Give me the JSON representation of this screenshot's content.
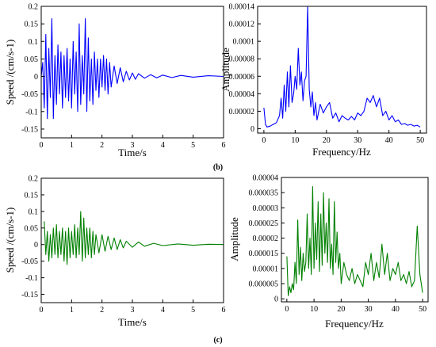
{
  "captions": {
    "b": "(b)",
    "c": "(c)"
  },
  "chart_data": [
    {
      "id": "b-time",
      "type": "line",
      "color": "#0000ff",
      "xlabel": "Time/s",
      "ylabel": "Speed /(cm/s-1)",
      "xlim": [
        0,
        6
      ],
      "ylim": [
        -0.175,
        0.2
      ],
      "xticks": [
        "0",
        "1",
        "2",
        "3",
        "4",
        "5",
        "6"
      ],
      "yticks": [
        "-0.15",
        "-0.1",
        "-0.05",
        "0",
        "0.05",
        "0.1",
        "0.15",
        "0.2"
      ],
      "x": [
        0,
        0.05,
        0.1,
        0.15,
        0.2,
        0.25,
        0.3,
        0.35,
        0.4,
        0.45,
        0.5,
        0.55,
        0.6,
        0.65,
        0.7,
        0.75,
        0.8,
        0.85,
        0.9,
        0.95,
        1.0,
        1.05,
        1.1,
        1.15,
        1.2,
        1.25,
        1.3,
        1.35,
        1.4,
        1.45,
        1.5,
        1.55,
        1.6,
        1.65,
        1.7,
        1.75,
        1.8,
        1.85,
        1.9,
        1.95,
        2.0,
        2.05,
        2.1,
        2.15,
        2.2,
        2.25,
        2.3,
        2.4,
        2.5,
        2.6,
        2.7,
        2.8,
        2.9,
        3.0,
        3.1,
        3.2,
        3.4,
        3.6,
        3.8,
        4.0,
        4.3,
        4.6,
        5.0,
        5.5,
        6.0
      ],
      "y": [
        0,
        0.04,
        -0.09,
        0.12,
        -0.12,
        0.08,
        -0.06,
        0.165,
        -0.12,
        0.06,
        -0.08,
        0.09,
        -0.05,
        0.07,
        -0.09,
        0.06,
        -0.06,
        0.08,
        -0.07,
        0.05,
        -0.09,
        0.1,
        -0.05,
        0.07,
        -0.1,
        0.15,
        -0.08,
        0.06,
        -0.05,
        0.165,
        -0.1,
        0.11,
        -0.07,
        0.05,
        -0.08,
        0.07,
        -0.04,
        0.05,
        -0.06,
        0.05,
        -0.03,
        0.06,
        -0.04,
        0.05,
        -0.05,
        0.04,
        -0.03,
        0.03,
        -0.02,
        0.025,
        -0.015,
        0.015,
        -0.01,
        0.01,
        -0.008,
        0.008,
        -0.005,
        0.005,
        -0.004,
        0.004,
        -0.003,
        0.003,
        -0.002,
        0.002,
        0
      ]
    },
    {
      "id": "b-spectrum",
      "type": "line",
      "color": "#0000ff",
      "xlabel": "Frequency/Hz",
      "ylabel": "Amplitude",
      "xlim": [
        -2,
        52
      ],
      "ylim": [
        -5e-06,
        0.00014
      ],
      "xticks": [
        "0",
        "10",
        "20",
        "30",
        "40",
        "50"
      ],
      "yticks": [
        "0",
        "0.00002",
        "0.00004",
        "0.00006",
        "0.00008",
        "0.0001",
        "0.00012",
        "0.00014"
      ],
      "x": [
        0,
        0.5,
        1,
        2,
        3,
        4,
        5,
        5.5,
        6,
        6.5,
        7,
        7.5,
        8,
        8.5,
        9,
        9.5,
        10,
        10.5,
        11,
        11.5,
        12,
        12.5,
        13,
        13.5,
        14,
        14.5,
        15,
        15.5,
        16,
        16.5,
        17,
        18,
        19,
        20,
        21,
        22,
        23,
        24,
        25,
        26,
        27,
        28,
        29,
        30,
        31,
        32,
        33,
        34,
        35,
        36,
        37,
        38,
        39,
        40,
        41,
        42,
        43,
        44,
        45,
        46,
        47,
        48,
        49,
        50
      ],
      "y": [
        2.4e-05,
        5e-06,
        2e-06,
        3e-06,
        5e-06,
        7e-06,
        1.5e-05,
        3.5e-05,
        1.2e-05,
        5e-05,
        2e-05,
        6.5e-05,
        2.5e-05,
        7.2e-05,
        3e-05,
        4e-05,
        6e-05,
        4.5e-05,
        9.2e-05,
        5e-05,
        6.5e-05,
        3.2e-05,
        5.5e-05,
        6e-05,
        0.00014,
        4.5e-05,
        2.5e-05,
        4.2e-05,
        1.5e-05,
        3e-05,
        1e-05,
        2.8e-05,
        1.8e-05,
        2.5e-05,
        3e-05,
        1.2e-05,
        1.8e-05,
        8e-06,
        1.5e-05,
        1.2e-05,
        1e-05,
        1.4e-05,
        1e-05,
        1.8e-05,
        1.5e-05,
        2e-05,
        3.5e-05,
        3e-05,
        3.8e-05,
        2.5e-05,
        3.5e-05,
        1.5e-05,
        2e-05,
        1e-05,
        1.5e-05,
        8e-06,
        1e-05,
        5e-06,
        6e-06,
        4e-06,
        5e-06,
        3e-06,
        4e-06,
        2e-06
      ]
    },
    {
      "id": "c-time",
      "type": "line",
      "color": "#008000",
      "xlabel": "Time/s",
      "ylabel": "Speed /(cm/s-1)",
      "xlim": [
        0,
        6
      ],
      "ylim": [
        -0.175,
        0.2
      ],
      "xticks": [
        "0",
        "1",
        "2",
        "3",
        "4",
        "5",
        "6"
      ],
      "yticks": [
        "-0.15",
        "-0.1",
        "-0.05",
        "0",
        "0.05",
        "0.1",
        "0.15",
        "0.2"
      ],
      "x": [
        0.1,
        0.15,
        0.2,
        0.25,
        0.3,
        0.35,
        0.4,
        0.45,
        0.5,
        0.55,
        0.6,
        0.65,
        0.7,
        0.75,
        0.8,
        0.85,
        0.9,
        0.95,
        1.0,
        1.05,
        1.1,
        1.15,
        1.2,
        1.25,
        1.3,
        1.35,
        1.4,
        1.45,
        1.5,
        1.55,
        1.6,
        1.65,
        1.7,
        1.75,
        1.8,
        1.9,
        2.0,
        2.1,
        2.2,
        2.3,
        2.4,
        2.5,
        2.6,
        2.7,
        2.8,
        3.0,
        3.2,
        3.4,
        3.7,
        4.0,
        4.5,
        5.0,
        5.5,
        6.0
      ],
      "y": [
        0.07,
        -0.03,
        0.04,
        -0.05,
        0.03,
        -0.04,
        0.05,
        -0.03,
        0.06,
        -0.04,
        0.04,
        -0.03,
        0.05,
        -0.05,
        0.04,
        -0.06,
        0.05,
        -0.04,
        0.04,
        -0.03,
        0.06,
        -0.04,
        0.05,
        -0.03,
        0.1,
        -0.05,
        0.08,
        -0.04,
        0.05,
        -0.03,
        0.05,
        -0.04,
        0.04,
        -0.03,
        0.03,
        -0.025,
        0.03,
        -0.02,
        0.025,
        -0.015,
        0.02,
        -0.015,
        0.015,
        -0.01,
        0.01,
        -0.008,
        0.008,
        -0.005,
        0.004,
        -0.003,
        0.002,
        -0.002,
        0.001,
        0
      ]
    },
    {
      "id": "c-spectrum",
      "type": "line",
      "color": "#008000",
      "xlabel": "Frequency/Hz",
      "ylabel": "Amplitude",
      "xlim": [
        -2,
        52
      ],
      "ylim": [
        -1e-06,
        4e-05
      ],
      "xticks": [
        "0",
        "10",
        "20",
        "30",
        "40",
        "50"
      ],
      "yticks": [
        "0",
        "0.000005",
        "0.00001",
        "0.000015",
        "0.00002",
        "0.000025",
        "0.00003",
        "0.000035",
        "0.00004"
      ],
      "x": [
        0,
        0.5,
        1,
        1.5,
        2,
        2.5,
        3,
        3.5,
        4,
        4.5,
        5,
        5.5,
        6,
        6.5,
        7,
        7.5,
        8,
        8.5,
        9,
        9.5,
        10,
        10.5,
        11,
        11.5,
        12,
        12.5,
        13,
        13.5,
        14,
        14.5,
        15,
        15.5,
        16,
        16.5,
        17,
        17.5,
        18,
        18.5,
        19,
        19.5,
        20,
        21,
        22,
        23,
        24,
        25,
        26,
        27,
        28,
        29,
        30,
        31,
        32,
        33,
        34,
        35,
        36,
        37,
        38,
        39,
        40,
        41,
        42,
        43,
        44,
        45,
        46,
        47,
        48,
        49,
        50
      ],
      "y": [
        1.4e-05,
        1e-06,
        4e-06,
        2e-06,
        5e-06,
        3e-06,
        1.2e-05,
        5e-06,
        2.6e-05,
        8e-06,
        1.7e-05,
        6e-06,
        1.5e-05,
        9e-06,
        1.2e-05,
        2.8e-05,
        1e-05,
        2e-05,
        8e-06,
        3.7e-05,
        1e-05,
        2.5e-05,
        1.3e-05,
        3.2e-05,
        9e-06,
        2.8e-05,
        1.1e-05,
        3.5e-05,
        1.5e-05,
        2.5e-05,
        1.2e-05,
        3.3e-05,
        1e-05,
        1.8e-05,
        8e-06,
        3.2e-05,
        1.2e-05,
        2.2e-05,
        1e-05,
        1.5e-05,
        5e-06,
        1.2e-05,
        8e-06,
        6e-06,
        1e-05,
        5e-06,
        8e-06,
        6e-06,
        4e-06,
        1.2e-05,
        8e-06,
        1.5e-05,
        6e-06,
        1.2e-05,
        7e-06,
        1.8e-05,
        8e-06,
        1.5e-05,
        6e-06,
        1e-05,
        8e-06,
        1.2e-05,
        6e-06,
        8e-06,
        5e-06,
        9e-06,
        4e-06,
        6e-06,
        2.4e-05,
        8e-06,
        2e-06
      ]
    }
  ]
}
